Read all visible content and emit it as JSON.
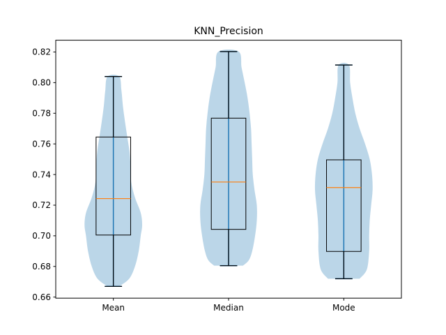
{
  "chart_data": {
    "type": "violin",
    "title": "KNN_Precision",
    "xlabel": "",
    "ylabel": "",
    "ylim": [
      0.6593,
      0.8277
    ],
    "yticks": [
      0.66,
      0.68,
      0.7,
      0.72,
      0.74,
      0.76,
      0.78,
      0.8,
      0.82
    ],
    "ytick_labels": [
      "0.66",
      "0.68",
      "0.70",
      "0.72",
      "0.74",
      "0.76",
      "0.78",
      "0.80",
      "0.82"
    ],
    "categories": [
      "Mean",
      "Median",
      "Mode"
    ],
    "grid": false,
    "colors": {
      "violin_fill": "#1f77b4",
      "violin_edge": "#1f77b4",
      "box": "#000000",
      "median": "#ff7f0e",
      "whisker": "#000000"
    },
    "groups": [
      {
        "name": "Mean",
        "min": 0.667,
        "q1": 0.7005,
        "median": 0.7243,
        "q3": 0.7645,
        "max": 0.804,
        "density": [
          [
            0.667,
            0.2
          ],
          [
            0.672,
            0.55
          ],
          [
            0.68,
            0.75
          ],
          [
            0.69,
            0.88
          ],
          [
            0.7,
            0.95
          ],
          [
            0.707,
            1.0
          ],
          [
            0.715,
            0.95
          ],
          [
            0.725,
            0.75
          ],
          [
            0.735,
            0.62
          ],
          [
            0.745,
            0.6
          ],
          [
            0.755,
            0.56
          ],
          [
            0.765,
            0.48
          ],
          [
            0.775,
            0.4
          ],
          [
            0.785,
            0.33
          ],
          [
            0.795,
            0.28
          ],
          [
            0.804,
            0.2
          ]
        ]
      },
      {
        "name": "Median",
        "min": 0.6805,
        "q1": 0.7042,
        "median": 0.7351,
        "q3": 0.7768,
        "max": 0.8203,
        "density": [
          [
            0.6805,
            0.5
          ],
          [
            0.684,
            0.7
          ],
          [
            0.69,
            0.82
          ],
          [
            0.7,
            0.92
          ],
          [
            0.71,
            0.98
          ],
          [
            0.72,
            0.98
          ],
          [
            0.73,
            0.9
          ],
          [
            0.74,
            0.84
          ],
          [
            0.75,
            0.82
          ],
          [
            0.76,
            0.8
          ],
          [
            0.77,
            0.78
          ],
          [
            0.78,
            0.73
          ],
          [
            0.79,
            0.66
          ],
          [
            0.8,
            0.56
          ],
          [
            0.81,
            0.45
          ],
          [
            0.8203,
            0.35
          ]
        ]
      },
      {
        "name": "Mode",
        "min": 0.672,
        "q1": 0.6898,
        "median": 0.7315,
        "q3": 0.7496,
        "max": 0.8115,
        "density": [
          [
            0.672,
            0.55
          ],
          [
            0.678,
            0.8
          ],
          [
            0.69,
            0.88
          ],
          [
            0.7,
            0.88
          ],
          [
            0.71,
            0.9
          ],
          [
            0.72,
            0.95
          ],
          [
            0.73,
            1.0
          ],
          [
            0.74,
            0.98
          ],
          [
            0.75,
            0.9
          ],
          [
            0.76,
            0.74
          ],
          [
            0.77,
            0.55
          ],
          [
            0.78,
            0.4
          ],
          [
            0.79,
            0.3
          ],
          [
            0.8,
            0.22
          ],
          [
            0.8115,
            0.18
          ]
        ]
      }
    ]
  }
}
